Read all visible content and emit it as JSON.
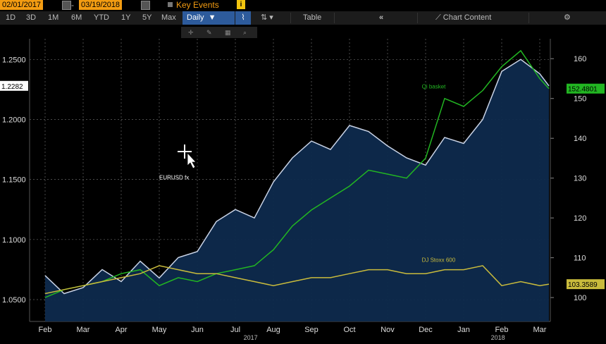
{
  "header": {
    "start_date": "02/01/2017",
    "end_date": "03/19/2018",
    "key_events_label": "Key Events",
    "key_events_icon": "info-icon"
  },
  "toolbar": {
    "periods": [
      "1D",
      "3D",
      "1M",
      "6M",
      "YTD",
      "1Y",
      "5Y",
      "Max"
    ],
    "frequency_label": "Daily",
    "table_label": "Table",
    "chart_content_label": "Chart Content",
    "collapse_icon": "double-chevron-left-icon",
    "settings_icon": "gear-icon",
    "chart_icon": "line-chart-icon",
    "compare_icon": "up-down-arrows-icon"
  },
  "subtools": {
    "icons": [
      "crosshair-icon",
      "pencil-icon",
      "grid-icon",
      "search-icon"
    ]
  },
  "colors": {
    "background": "#000000",
    "eurusd": "#c9d3e6",
    "eurusd_fill": "#0e2a4d",
    "qi_basket": "#22b622",
    "stoxx": "#c9bb3c",
    "header_orange": "#f39c12",
    "active_button": "#2d5b9c",
    "grid": "#666666"
  },
  "chart_data": {
    "type": "line",
    "x_labels": [
      "Feb",
      "Mar",
      "Apr",
      "May",
      "Jun",
      "Jul",
      "Aug",
      "Sep",
      "Oct",
      "Nov",
      "Dec",
      "Jan",
      "Feb",
      "Mar"
    ],
    "year_labels": [
      "2017",
      "2018"
    ],
    "left_axis": {
      "ticks": [
        "1.0500",
        "1.1000",
        "1.1500",
        "1.2000",
        "1.2500"
      ],
      "range": [
        1.0318,
        1.2672
      ]
    },
    "right_axis": {
      "ticks": [
        "100",
        "110",
        "120",
        "130",
        "140",
        "150",
        "160"
      ],
      "range": [
        94.0,
        165.0
      ]
    },
    "grid": true,
    "series": [
      {
        "name": "EURUSD fx",
        "axis": "left",
        "last_value": "1.2282",
        "x": [
          0,
          0.5,
          1,
          1.5,
          2,
          2.5,
          3,
          3.5,
          4,
          4.5,
          5,
          5.5,
          6,
          6.5,
          7,
          7.5,
          8,
          8.5,
          9,
          9.5,
          10,
          10.5,
          11,
          11.5,
          12,
          12.5,
          13,
          13.5
        ],
        "values": [
          1.07,
          1.055,
          1.06,
          1.075,
          1.065,
          1.082,
          1.068,
          1.085,
          1.09,
          1.115,
          1.125,
          1.118,
          1.148,
          1.168,
          1.182,
          1.175,
          1.195,
          1.19,
          1.178,
          1.168,
          1.162,
          1.185,
          1.18,
          1.2,
          1.24,
          1.25,
          1.238,
          1.228
        ]
      },
      {
        "name": "Qi basket",
        "axis": "right",
        "last_value": "152.4801",
        "x": [
          0,
          0.5,
          1,
          1.5,
          2,
          2.5,
          3,
          3.5,
          4,
          4.5,
          5,
          5.5,
          6,
          6.5,
          7,
          7.5,
          8,
          8.5,
          9,
          9.5,
          10,
          10.5,
          11,
          11.5,
          12,
          12.5,
          13,
          13.5
        ],
        "values": [
          100,
          102,
          103,
          104,
          106,
          107,
          103,
          105,
          104,
          106,
          107,
          108,
          112,
          118,
          122,
          125,
          128,
          132,
          131,
          130,
          135,
          150,
          148,
          152,
          158,
          162,
          155,
          152.48
        ]
      },
      {
        "name": "DJ Stoxx 600",
        "axis": "right",
        "last_value": "103.3589",
        "x": [
          0,
          0.5,
          1,
          1.5,
          2,
          2.5,
          3,
          3.5,
          4,
          4.5,
          5,
          5.5,
          6,
          6.5,
          7,
          7.5,
          8,
          8.5,
          9,
          9.5,
          10,
          10.5,
          11,
          11.5,
          12,
          12.5,
          13,
          13.5
        ],
        "values": [
          101,
          102,
          103,
          104,
          105,
          106,
          108,
          107,
          106,
          106,
          105,
          104,
          103,
          104,
          105,
          105,
          106,
          107,
          107,
          106,
          106,
          107,
          107,
          108,
          103,
          104,
          103,
          103.36
        ]
      }
    ],
    "annotations": [
      {
        "text": "EURUSD fx",
        "x": 3.0,
        "y": 1.15,
        "axis": "left",
        "color": "#ffffff"
      },
      {
        "text": "Qi basket",
        "x": 9.9,
        "y": 152.5,
        "axis": "right",
        "color": "#22b622"
      },
      {
        "text": "DJ Stoxx 600",
        "x": 9.9,
        "y": 109.0,
        "axis": "right",
        "color": "#c9bb3c"
      }
    ]
  }
}
